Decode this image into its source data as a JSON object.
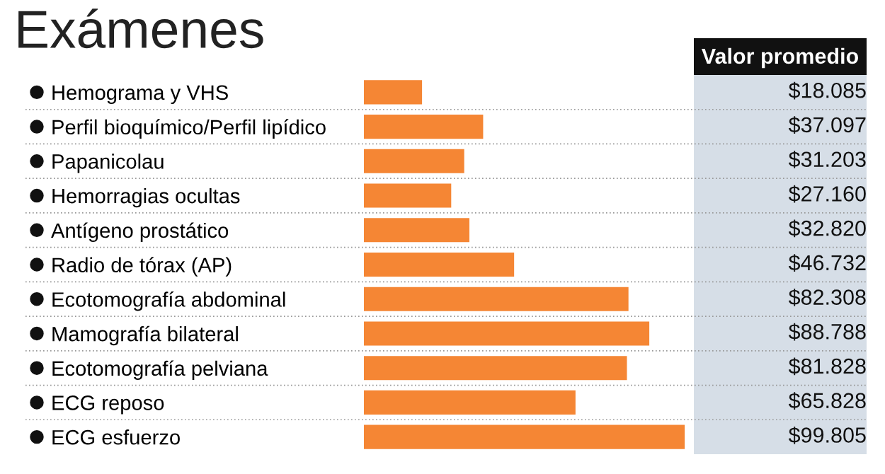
{
  "chart_data": {
    "type": "bar",
    "orientation": "horizontal",
    "title": "Exámenes",
    "categories": [
      "Hemograma y VHS",
      "Perfil bioquímico/Perfil lipídico",
      "Papanicolau",
      "Hemorragias ocultas",
      "Antígeno prostático",
      "Radio de tórax (AP)",
      "Ecotomografía abdominal",
      "Mamografía bilateral",
      "Ecotomografía pelviana",
      "ECG reposo",
      "ECG esfuerzo"
    ],
    "series": [
      {
        "color": "#f58634",
        "values": [
          18085,
          37097,
          31203,
          27160,
          32820,
          46732,
          82308,
          88788,
          81828,
          65828,
          99805
        ],
        "value_labels": [
          "$18.085",
          "$37.097",
          "$31.203",
          "$27.160",
          "$32.820",
          "$46.732",
          "$82.308",
          "$88.788",
          "$81.828",
          "$65.828",
          "$99.805"
        ]
      }
    ],
    "annotations": [
      "Valor promedio"
    ],
    "xlim": [
      0,
      100000
    ],
    "tick_labels": "y",
    "grid": false,
    "legend": false
  }
}
